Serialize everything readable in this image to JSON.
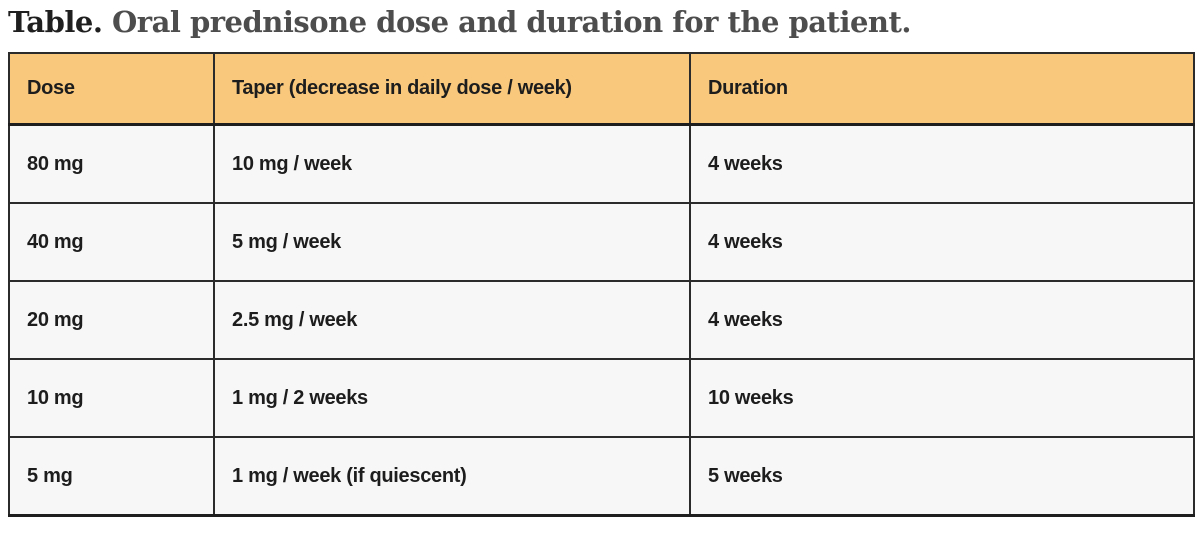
{
  "caption": {
    "prefix": "Table.",
    "rest": " Oral prednisone dose and duration for the patient."
  },
  "table": {
    "columns": [
      "Dose",
      "Taper (decrease in daily dose / week)",
      "Duration"
    ],
    "rows": [
      [
        "80 mg",
        "10 mg / week",
        "4 weeks"
      ],
      [
        "40 mg",
        "5 mg / week",
        "4 weeks"
      ],
      [
        "20 mg",
        "2.5 mg / week",
        "4 weeks"
      ],
      [
        "10 mg",
        "1 mg / 2 weeks",
        "10 weeks"
      ],
      [
        "5 mg",
        "1 mg / week (if quiescent)",
        "5 weeks"
      ]
    ]
  },
  "colors": {
    "header_bg": "#f9c87c",
    "row_bg": "#f7f7f8",
    "border": "#2b2b2b",
    "caption_prefix_text": "#1f1f1f",
    "caption_rest_text": "#4d4d4d",
    "cell_text": "#1d1d1d"
  }
}
